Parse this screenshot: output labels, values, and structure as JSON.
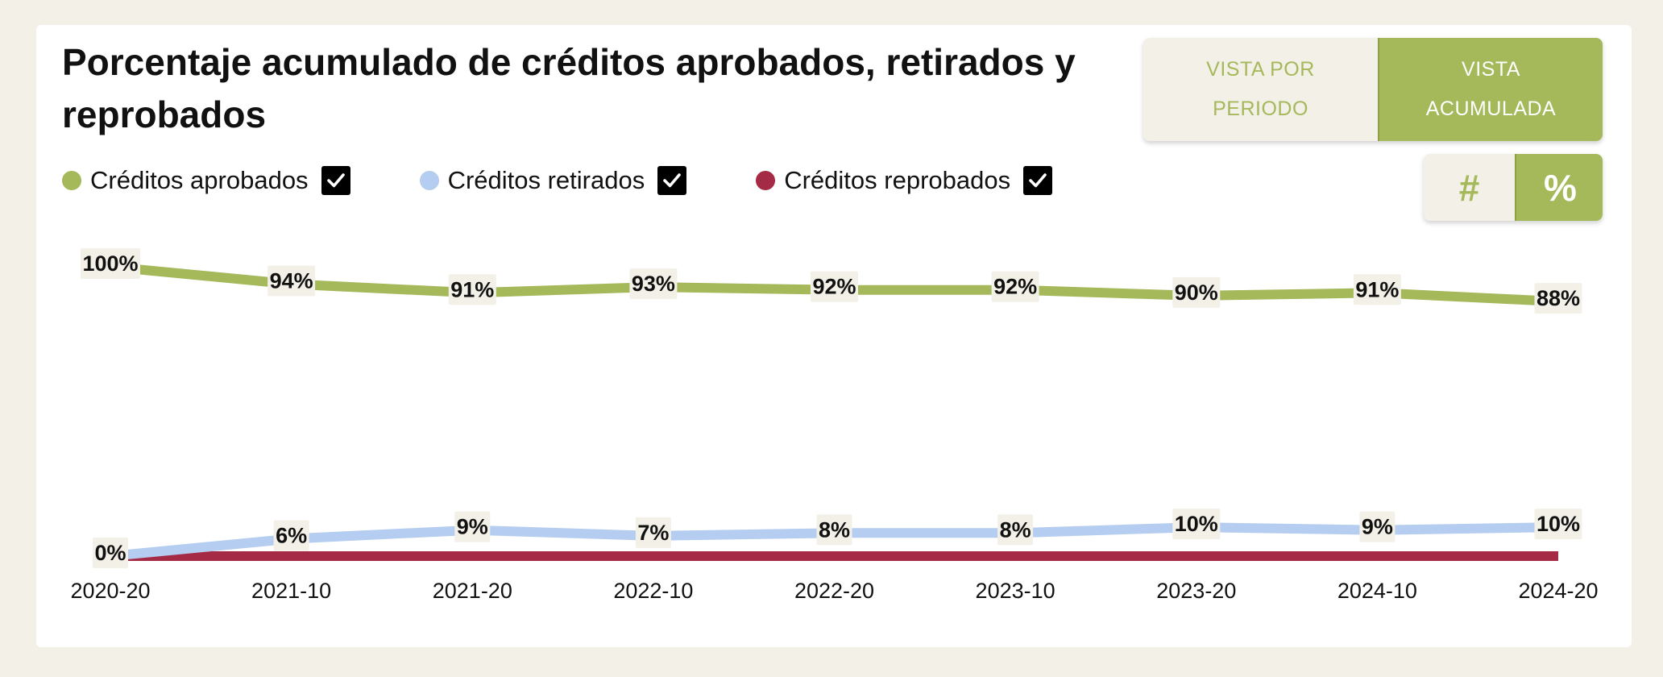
{
  "title": "Porcentaje acumulado de créditos aprobados, retirados y reprobados",
  "view_toggle": {
    "left_line1": "VISTA POR",
    "left_line2": "PERIODO",
    "right_line1": "VISTA",
    "right_line2": "ACUMULADA",
    "active": "right"
  },
  "unit_toggle": {
    "left": "#",
    "right": "%",
    "active": "right"
  },
  "colors": {
    "aprobados": "#a5b85a",
    "retirados": "#b5cdf0",
    "reprobados": "#a52a45",
    "label_bg": "#f3f0e8",
    "toggle_active": "#a5b85a",
    "toggle_inactive": "#f3f0e8"
  },
  "chart_data": {
    "type": "line",
    "x": [
      "2020-20",
      "2021-10",
      "2021-20",
      "2022-10",
      "2022-20",
      "2023-10",
      "2023-20",
      "2024-10",
      "2024-20"
    ],
    "ylim": [
      0,
      100
    ],
    "grid": false,
    "legend_position": "top-left",
    "series": [
      {
        "name": "Créditos aprobados",
        "key": "aprobados",
        "checked": true,
        "values": [
          100,
          94,
          91,
          93,
          92,
          92,
          90,
          91,
          88
        ],
        "labels": [
          "100%",
          "94%",
          "91%",
          "93%",
          "92%",
          "92%",
          "90%",
          "91%",
          "88%"
        ]
      },
      {
        "name": "Créditos retirados",
        "key": "retirados",
        "checked": true,
        "values": [
          0,
          6,
          9,
          7,
          8,
          8,
          10,
          9,
          10
        ],
        "labels": [
          "0%",
          "6%",
          "9%",
          "7%",
          "8%",
          "8%",
          "10%",
          "9%",
          "10%"
        ]
      },
      {
        "name": "Créditos reprobados",
        "key": "reprobados",
        "checked": true,
        "values": [
          0,
          0,
          0,
          0,
          0,
          0,
          0,
          0,
          0
        ],
        "labels": []
      }
    ]
  }
}
